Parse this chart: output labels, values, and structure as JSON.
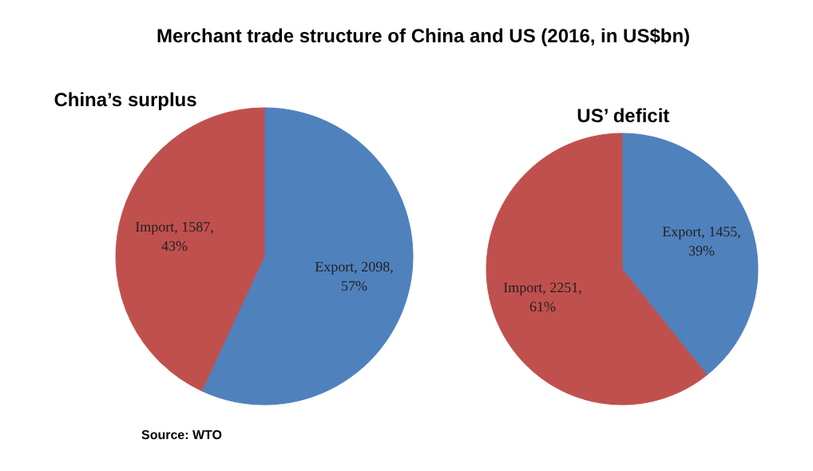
{
  "chart_data": [
    {
      "type": "pie",
      "title": "Merchant trade structure of China and US (2016, in US$bn)",
      "subtitle": "China’s surplus",
      "categories": [
        "Export",
        "Import"
      ],
      "values": [
        2098,
        1587
      ],
      "colors": [
        "#4f81bd",
        "#c0504d"
      ],
      "data_labels": true,
      "value_labels": [
        "2098, 57%",
        "1587, 43%"
      ],
      "annotations": [
        "Source: WTO"
      ]
    },
    {
      "type": "pie",
      "subtitle": "US’ deficit",
      "categories": [
        "Export",
        "Import"
      ],
      "values": [
        1455,
        2251
      ],
      "colors": [
        "#4f81bd",
        "#c0504d"
      ],
      "data_labels": true,
      "value_labels": [
        "1455, 39%",
        "2251, 61%"
      ]
    }
  ]
}
